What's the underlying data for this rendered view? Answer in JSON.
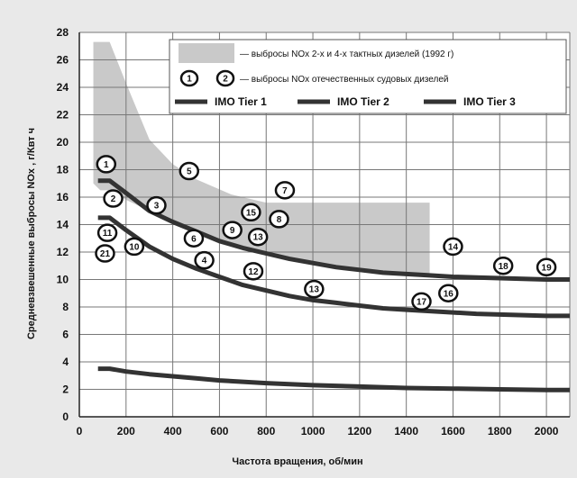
{
  "chart_data": {
    "type": "line",
    "title": "",
    "xlabel": "Частота вращения, об/мин",
    "ylabel": "Средневзвешенные выбросы NOx , г/Квт ч",
    "xlim": [
      0,
      2100
    ],
    "ylim": [
      0,
      28
    ],
    "x_ticks": [
      0,
      200,
      400,
      600,
      800,
      1000,
      1200,
      1400,
      1600,
      1800,
      2000
    ],
    "y_ticks": [
      0,
      2,
      4,
      6,
      8,
      10,
      12,
      14,
      16,
      18,
      20,
      22,
      24,
      26,
      28
    ],
    "grid": true,
    "legend_position": "top-right",
    "band": {
      "name": "— выбросы NOx 2-х и 4-х тактных дизелей (1992 г)",
      "color": "#c9c9c9",
      "upper": [
        [
          60,
          27.3
        ],
        [
          130,
          27.3
        ],
        [
          200,
          24.3
        ],
        [
          300,
          20.2
        ],
        [
          400,
          18.4
        ],
        [
          500,
          17.3
        ],
        [
          650,
          16.2
        ],
        [
          800,
          15.6
        ],
        [
          1500,
          15.6
        ]
      ],
      "lower": [
        [
          1500,
          10.4
        ],
        [
          1300,
          10.4
        ],
        [
          1100,
          10.8
        ],
        [
          900,
          11.4
        ],
        [
          700,
          12.3
        ],
        [
          500,
          13.5
        ],
        [
          300,
          15.0
        ],
        [
          200,
          15.8
        ],
        [
          130,
          16.5
        ],
        [
          90,
          16.5
        ],
        [
          60,
          17.0
        ]
      ]
    },
    "marker_legend": {
      "samples": [
        "1",
        "2"
      ],
      "label": "— выбросы NOx отечественных судовых  дизелей"
    },
    "series": [
      {
        "name": "IMO Tier 1",
        "color": "#333333",
        "points": [
          [
            80,
            17.2
          ],
          [
            130,
            17.2
          ],
          [
            200,
            16.3
          ],
          [
            300,
            15.0
          ],
          [
            400,
            14.2
          ],
          [
            500,
            13.5
          ],
          [
            600,
            12.8
          ],
          [
            700,
            12.3
          ],
          [
            800,
            11.9
          ],
          [
            900,
            11.5
          ],
          [
            1000,
            11.2
          ],
          [
            1100,
            10.9
          ],
          [
            1200,
            10.7
          ],
          [
            1300,
            10.5
          ],
          [
            1400,
            10.4
          ],
          [
            1500,
            10.3
          ],
          [
            1600,
            10.2
          ],
          [
            1700,
            10.15
          ],
          [
            1800,
            10.1
          ],
          [
            1900,
            10.05
          ],
          [
            2000,
            10.0
          ],
          [
            2100,
            10.0
          ]
        ]
      },
      {
        "name": "IMO Tier 2",
        "color": "#333333",
        "points": [
          [
            80,
            14.5
          ],
          [
            130,
            14.5
          ],
          [
            200,
            13.6
          ],
          [
            300,
            12.4
          ],
          [
            400,
            11.5
          ],
          [
            500,
            10.8
          ],
          [
            600,
            10.2
          ],
          [
            700,
            9.6
          ],
          [
            800,
            9.2
          ],
          [
            900,
            8.8
          ],
          [
            1000,
            8.5
          ],
          [
            1100,
            8.3
          ],
          [
            1200,
            8.1
          ],
          [
            1300,
            7.9
          ],
          [
            1400,
            7.8
          ],
          [
            1500,
            7.7
          ],
          [
            1600,
            7.6
          ],
          [
            1700,
            7.5
          ],
          [
            1800,
            7.45
          ],
          [
            1900,
            7.4
          ],
          [
            2000,
            7.35
          ],
          [
            2100,
            7.35
          ]
        ]
      },
      {
        "name": "IMO Tier 3",
        "color": "#333333",
        "points": [
          [
            80,
            3.5
          ],
          [
            130,
            3.5
          ],
          [
            200,
            3.3
          ],
          [
            300,
            3.1
          ],
          [
            400,
            2.95
          ],
          [
            500,
            2.8
          ],
          [
            600,
            2.65
          ],
          [
            700,
            2.55
          ],
          [
            800,
            2.45
          ],
          [
            900,
            2.38
          ],
          [
            1000,
            2.3
          ],
          [
            1200,
            2.2
          ],
          [
            1400,
            2.1
          ],
          [
            1600,
            2.05
          ],
          [
            1800,
            2.0
          ],
          [
            2000,
            1.95
          ],
          [
            2100,
            1.95
          ]
        ]
      }
    ],
    "markers": [
      {
        "label": "1",
        "x": 115,
        "y": 18.4
      },
      {
        "label": "2",
        "x": 145,
        "y": 15.9
      },
      {
        "label": "3",
        "x": 330,
        "y": 15.4
      },
      {
        "label": "4",
        "x": 535,
        "y": 11.4
      },
      {
        "label": "5",
        "x": 470,
        "y": 17.9
      },
      {
        "label": "6",
        "x": 490,
        "y": 13.0
      },
      {
        "label": "7",
        "x": 880,
        "y": 16.5
      },
      {
        "label": "8",
        "x": 855,
        "y": 14.4
      },
      {
        "label": "9",
        "x": 655,
        "y": 13.6
      },
      {
        "label": "10",
        "x": 235,
        "y": 12.4
      },
      {
        "label": "11",
        "x": 120,
        "y": 13.4
      },
      {
        "label": "12",
        "x": 745,
        "y": 10.6
      },
      {
        "label": "13",
        "x": 765,
        "y": 13.1
      },
      {
        "label": "14",
        "x": 1600,
        "y": 12.4
      },
      {
        "label": "15",
        "x": 735,
        "y": 14.9
      },
      {
        "label": "16",
        "x": 1580,
        "y": 9.0
      },
      {
        "label": "17",
        "x": 1465,
        "y": 8.4
      },
      {
        "label": "18",
        "x": 1815,
        "y": 11.0
      },
      {
        "label": "19",
        "x": 2000,
        "y": 10.9
      },
      {
        "label": "21",
        "x": 110,
        "y": 11.9
      },
      {
        "label": "13",
        "x": 1005,
        "y": 9.3
      }
    ]
  }
}
